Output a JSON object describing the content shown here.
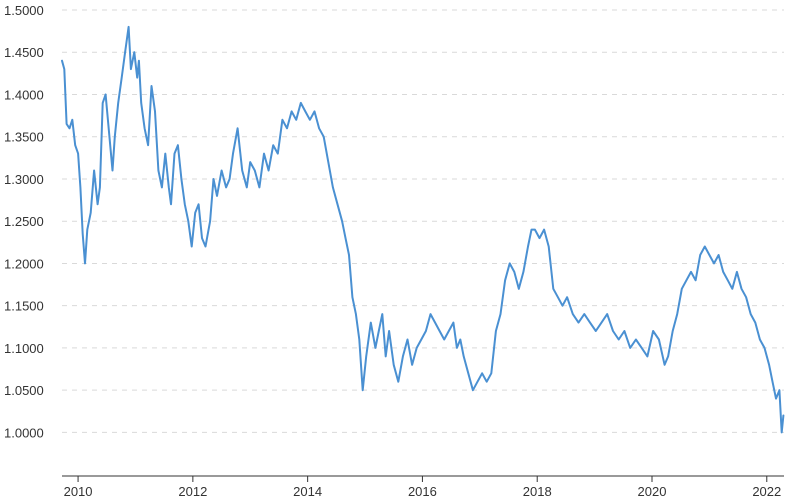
{
  "chart_data": {
    "type": "line",
    "title": "",
    "xlabel": "",
    "ylabel": "",
    "xlim": [
      2009.72,
      2022.3
    ],
    "ylim": [
      0.95,
      1.5
    ],
    "grid": true,
    "line_color": "#4a90d2",
    "ytick_values": [
      1.0,
      1.05,
      1.1,
      1.15,
      1.2,
      1.25,
      1.3,
      1.35,
      1.4,
      1.45,
      1.5
    ],
    "ytick_labels": [
      "1.0000",
      "1.0500",
      "1.1000",
      "1.1500",
      "1.2000",
      "1.2500",
      "1.3000",
      "1.3500",
      "1.4000",
      "1.4500",
      "1.5000"
    ],
    "xtick_values": [
      2010,
      2012,
      2014,
      2016,
      2018,
      2020,
      2022
    ],
    "xtick_labels": [
      "2010",
      "2012",
      "2014",
      "2016",
      "2018",
      "2020",
      "2022"
    ],
    "series": [
      {
        "x": [
          2009.72,
          2009.76,
          2009.8,
          2009.85,
          2009.9,
          2009.95,
          2010.0,
          2010.04,
          2010.08,
          2010.12,
          2010.16,
          2010.22,
          2010.28,
          2010.34,
          2010.38,
          2010.43,
          2010.48,
          2010.52,
          2010.56,
          2010.6,
          2010.64,
          2010.7,
          2010.76,
          2010.82,
          2010.88,
          2010.92,
          2010.98,
          2011.03,
          2011.06,
          2011.1,
          2011.16,
          2011.22,
          2011.28,
          2011.34,
          2011.4,
          2011.46,
          2011.52,
          2011.58,
          2011.62,
          2011.68,
          2011.74,
          2011.8,
          2011.86,
          2011.92,
          2011.98,
          2012.04,
          2012.1,
          2012.16,
          2012.22,
          2012.3,
          2012.36,
          2012.42,
          2012.5,
          2012.58,
          2012.64,
          2012.7,
          2012.78,
          2012.86,
          2012.94,
          2013.0,
          2013.08,
          2013.16,
          2013.24,
          2013.32,
          2013.4,
          2013.48,
          2013.56,
          2013.64,
          2013.72,
          2013.8,
          2013.88,
          2013.96,
          2014.04,
          2014.12,
          2014.2,
          2014.28,
          2014.36,
          2014.44,
          2014.52,
          2014.6,
          2014.66,
          2014.72,
          2014.78,
          2014.84,
          2014.9,
          2014.96,
          2015.02,
          2015.1,
          2015.18,
          2015.24,
          2015.3,
          2015.36,
          2015.42,
          2015.5,
          2015.58,
          2015.66,
          2015.74,
          2015.82,
          2015.9,
          2015.98,
          2016.06,
          2016.14,
          2016.22,
          2016.3,
          2016.38,
          2016.46,
          2016.54,
          2016.6,
          2016.66,
          2016.72,
          2016.8,
          2016.88,
          2016.96,
          2017.04,
          2017.12,
          2017.2,
          2017.28,
          2017.36,
          2017.44,
          2017.52,
          2017.6,
          2017.68,
          2017.76,
          2017.84,
          2017.9,
          2017.96,
          2018.04,
          2018.12,
          2018.2,
          2018.28,
          2018.36,
          2018.44,
          2018.52,
          2018.62,
          2018.72,
          2018.82,
          2018.92,
          2019.02,
          2019.12,
          2019.22,
          2019.32,
          2019.42,
          2019.52,
          2019.62,
          2019.72,
          2019.82,
          2019.92,
          2020.02,
          2020.12,
          2020.22,
          2020.28,
          2020.36,
          2020.44,
          2020.52,
          2020.6,
          2020.68,
          2020.76,
          2020.84,
          2020.92,
          2021.0,
          2021.08,
          2021.16,
          2021.24,
          2021.32,
          2021.4,
          2021.48,
          2021.56,
          2021.64,
          2021.72,
          2021.8,
          2021.88,
          2021.96,
          2022.04,
          2022.1,
          2022.16,
          2022.22,
          2022.26,
          2022.29
        ],
        "y": [
          1.44,
          1.43,
          1.365,
          1.36,
          1.37,
          1.34,
          1.33,
          1.29,
          1.235,
          1.2,
          1.24,
          1.26,
          1.31,
          1.27,
          1.29,
          1.39,
          1.4,
          1.37,
          1.34,
          1.31,
          1.35,
          1.39,
          1.42,
          1.45,
          1.48,
          1.43,
          1.45,
          1.42,
          1.44,
          1.39,
          1.36,
          1.34,
          1.41,
          1.38,
          1.31,
          1.29,
          1.33,
          1.29,
          1.27,
          1.33,
          1.34,
          1.3,
          1.27,
          1.25,
          1.22,
          1.26,
          1.27,
          1.23,
          1.22,
          1.25,
          1.3,
          1.28,
          1.31,
          1.29,
          1.3,
          1.33,
          1.36,
          1.31,
          1.29,
          1.32,
          1.31,
          1.29,
          1.33,
          1.31,
          1.34,
          1.33,
          1.37,
          1.36,
          1.38,
          1.37,
          1.39,
          1.38,
          1.37,
          1.38,
          1.36,
          1.35,
          1.32,
          1.29,
          1.27,
          1.25,
          1.23,
          1.21,
          1.16,
          1.14,
          1.11,
          1.05,
          1.09,
          1.13,
          1.1,
          1.12,
          1.14,
          1.09,
          1.12,
          1.08,
          1.06,
          1.09,
          1.11,
          1.08,
          1.1,
          1.11,
          1.12,
          1.14,
          1.13,
          1.12,
          1.11,
          1.12,
          1.13,
          1.1,
          1.11,
          1.09,
          1.07,
          1.05,
          1.06,
          1.07,
          1.06,
          1.07,
          1.12,
          1.14,
          1.18,
          1.2,
          1.19,
          1.17,
          1.19,
          1.22,
          1.24,
          1.24,
          1.23,
          1.24,
          1.22,
          1.17,
          1.16,
          1.15,
          1.16,
          1.14,
          1.13,
          1.14,
          1.13,
          1.12,
          1.13,
          1.14,
          1.12,
          1.11,
          1.12,
          1.1,
          1.11,
          1.1,
          1.09,
          1.12,
          1.11,
          1.08,
          1.09,
          1.12,
          1.14,
          1.17,
          1.18,
          1.19,
          1.18,
          1.21,
          1.22,
          1.21,
          1.2,
          1.21,
          1.19,
          1.18,
          1.17,
          1.19,
          1.17,
          1.16,
          1.14,
          1.13,
          1.11,
          1.1,
          1.08,
          1.06,
          1.04,
          1.05,
          1.0,
          1.02
        ]
      }
    ]
  }
}
